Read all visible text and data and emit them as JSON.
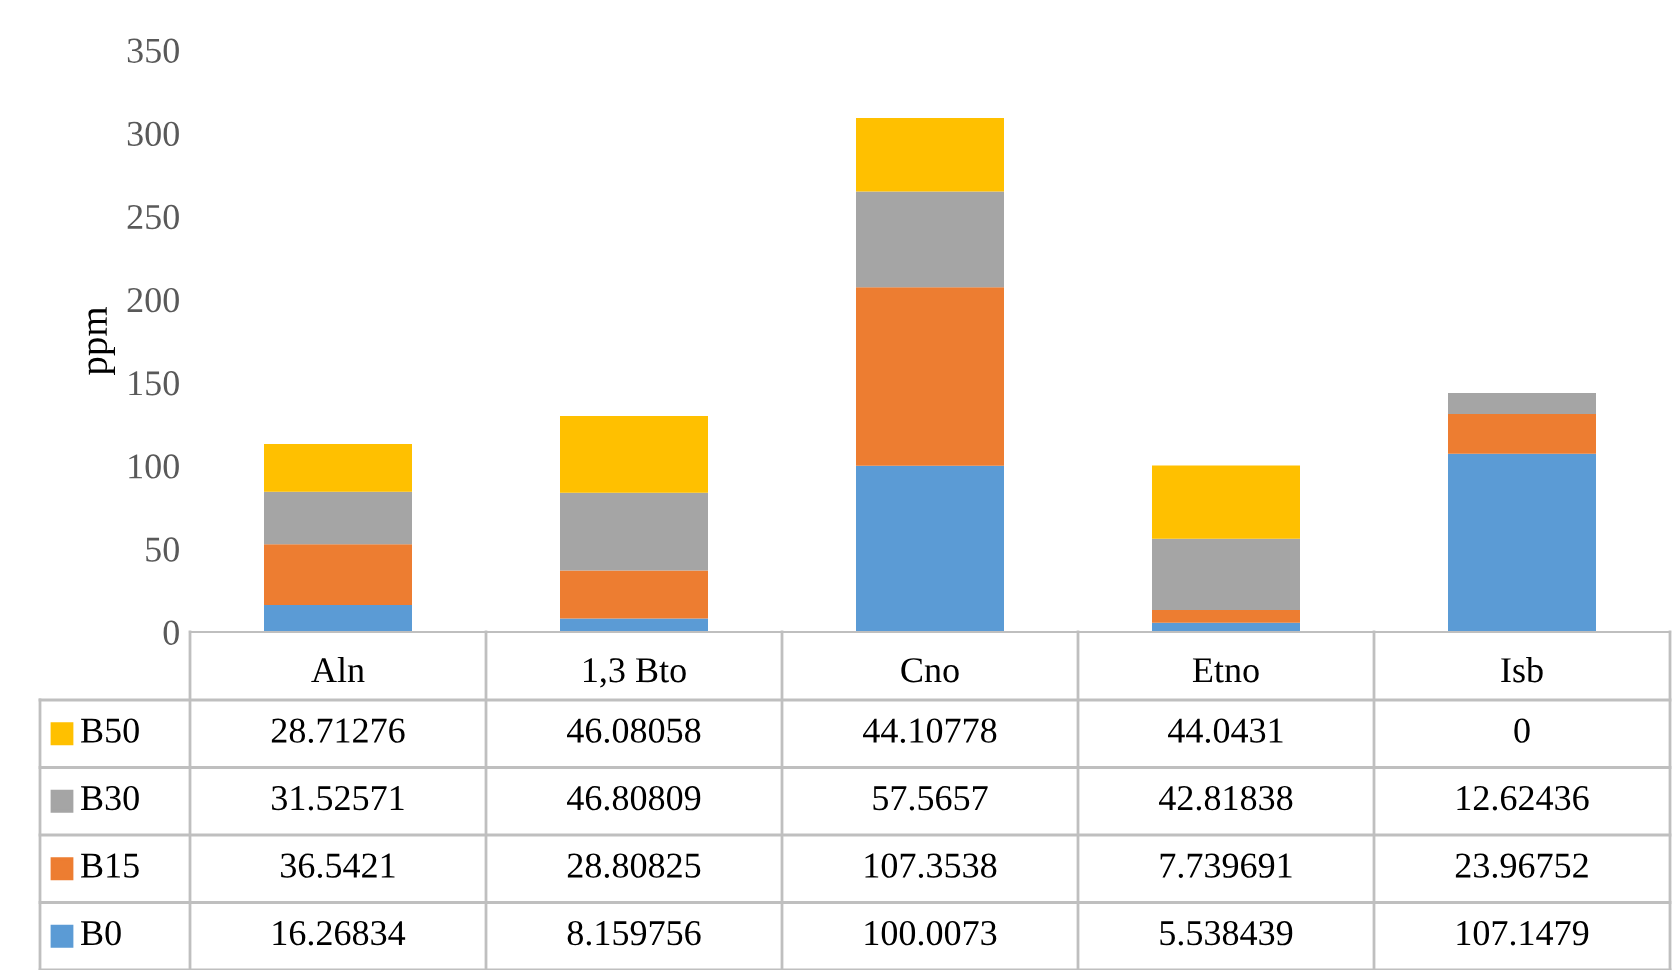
{
  "chart_data": {
    "type": "bar",
    "stacked": true,
    "ylabel": "ppm",
    "categories": [
      "Aln",
      "1,3 Bto",
      "Cno",
      "Etno",
      "Isb"
    ],
    "series": [
      {
        "name": "B0",
        "color": "#5b9bd5",
        "values": [
          16.26834,
          8.159756,
          100.0073,
          5.538439,
          107.1479
        ]
      },
      {
        "name": "B15",
        "color": "#ed7d31",
        "values": [
          36.5421,
          28.80825,
          107.3538,
          7.739691,
          23.96752
        ]
      },
      {
        "name": "B30",
        "color": "#a5a5a5",
        "values": [
          31.52571,
          46.80809,
          57.5657,
          42.81838,
          12.62436
        ]
      },
      {
        "name": "B50",
        "color": "#ffc000",
        "values": [
          28.71276,
          46.08058,
          44.10778,
          44.0431,
          0
        ]
      }
    ],
    "ylim": [
      0,
      350
    ],
    "yticks": [
      0,
      50,
      100,
      150,
      200,
      250,
      300,
      350
    ],
    "grid": false,
    "legend": "bottom left",
    "data_labels": true
  }
}
